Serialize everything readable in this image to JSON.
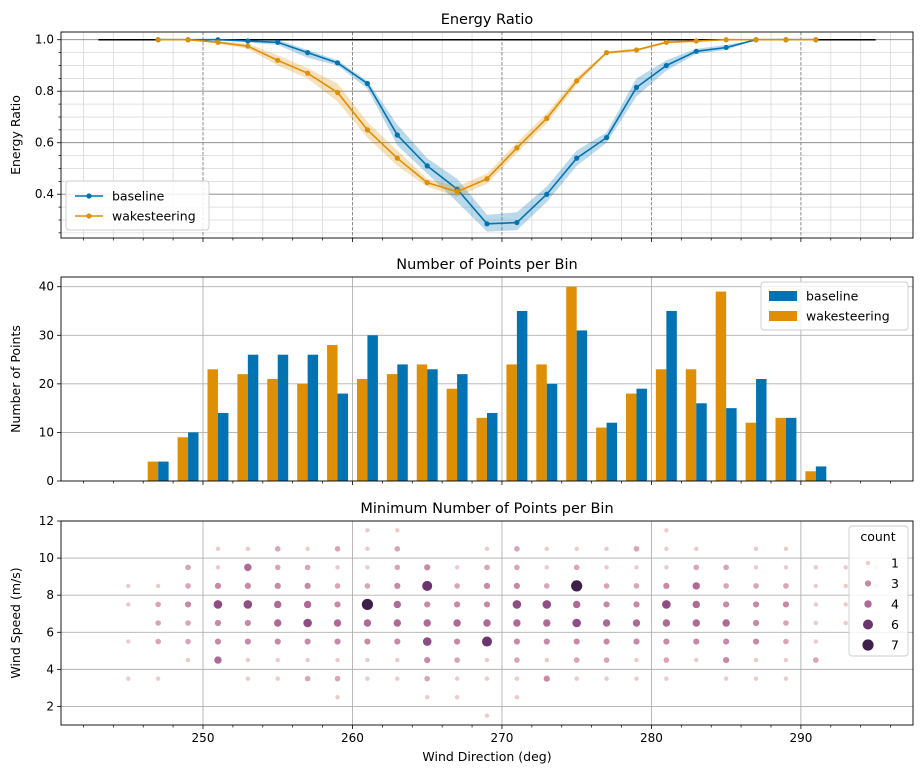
{
  "chart_data": [
    {
      "type": "line",
      "title": "Energy Ratio",
      "xlabel": "",
      "ylabel": "Energy Ratio",
      "xlim": [
        240.5,
        297.5
      ],
      "ylim": [
        0.23,
        1.03
      ],
      "yticks": [
        "0.4",
        "0.6",
        "0.8",
        "1.0"
      ],
      "grid": true,
      "legend_position": "lower-left",
      "reference_line": {
        "x": [
          243,
          295
        ],
        "y": 1.0,
        "color": "#000000"
      },
      "series": [
        {
          "name": "baseline",
          "color": "#0173b2",
          "x": [
            247,
            249,
            251,
            253,
            255,
            257,
            259,
            261,
            263,
            265,
            267,
            269,
            271,
            273,
            275,
            277,
            279,
            281,
            283,
            285,
            287,
            289,
            291
          ],
          "y": [
            1.0,
            1.0,
            1.0,
            0.995,
            0.99,
            0.95,
            0.91,
            0.83,
            0.63,
            0.51,
            0.42,
            0.285,
            0.29,
            0.4,
            0.54,
            0.62,
            0.815,
            0.9,
            0.955,
            0.97,
            1.0,
            1.0,
            1.0
          ],
          "ci_low": [
            1.0,
            1.0,
            1.0,
            0.99,
            0.98,
            0.93,
            0.9,
            0.81,
            0.59,
            0.48,
            0.37,
            0.255,
            0.26,
            0.37,
            0.51,
            0.6,
            0.78,
            0.88,
            0.945,
            0.96,
            1.0,
            1.0,
            1.0
          ],
          "ci_high": [
            1.0,
            1.0,
            1.0,
            1.0,
            1.0,
            0.96,
            0.92,
            0.84,
            0.67,
            0.54,
            0.46,
            0.32,
            0.33,
            0.43,
            0.57,
            0.64,
            0.85,
            0.92,
            0.965,
            0.98,
            1.0,
            1.0,
            1.0
          ]
        },
        {
          "name": "wakesteering",
          "color": "#de8f05",
          "x": [
            247,
            249,
            251,
            253,
            255,
            257,
            259,
            261,
            263,
            265,
            267,
            269,
            271,
            273,
            275,
            277,
            279,
            281,
            283,
            285,
            287,
            289,
            291
          ],
          "y": [
            1.0,
            1.0,
            0.99,
            0.975,
            0.92,
            0.87,
            0.795,
            0.65,
            0.54,
            0.445,
            0.41,
            0.46,
            0.58,
            0.695,
            0.84,
            0.95,
            0.96,
            0.99,
            0.995,
            1.0,
            1.0,
            1.0,
            1.0
          ],
          "ci_low": [
            1.0,
            1.0,
            0.985,
            0.965,
            0.9,
            0.85,
            0.76,
            0.62,
            0.51,
            0.43,
            0.39,
            0.44,
            0.56,
            0.675,
            0.825,
            0.945,
            0.955,
            0.985,
            0.99,
            1.0,
            1.0,
            1.0,
            1.0
          ],
          "ci_high": [
            1.0,
            1.0,
            0.995,
            0.985,
            0.94,
            0.89,
            0.83,
            0.68,
            0.57,
            0.46,
            0.43,
            0.48,
            0.6,
            0.715,
            0.855,
            0.955,
            0.965,
            0.995,
            1.0,
            1.0,
            1.0,
            1.0,
            1.0
          ]
        }
      ]
    },
    {
      "type": "bar",
      "title": "Number of Points per Bin",
      "xlabel": "",
      "ylabel": "Number of Points",
      "xlim": [
        240.5,
        297.5
      ],
      "ylim": [
        0,
        42
      ],
      "yticks": [
        "0",
        "10",
        "20",
        "30",
        "40"
      ],
      "grid": true,
      "legend_position": "top-right",
      "x": [
        247,
        249,
        251,
        253,
        255,
        257,
        259,
        261,
        263,
        265,
        267,
        269,
        271,
        273,
        275,
        277,
        279,
        281,
        283,
        285,
        287,
        289,
        291
      ],
      "series": [
        {
          "name": "baseline",
          "color": "#0173b2",
          "values": [
            4,
            10,
            14,
            26,
            26,
            26,
            18,
            30,
            24,
            23,
            22,
            14,
            35,
            20,
            31,
            12,
            19,
            35,
            16,
            15,
            21,
            13,
            3
          ]
        },
        {
          "name": "wakesteering",
          "color": "#de8f05",
          "values": [
            4,
            9,
            23,
            22,
            21,
            20,
            28,
            21,
            22,
            24,
            19,
            13,
            24,
            24,
            40,
            11,
            18,
            23,
            23,
            39,
            12,
            13,
            2
          ]
        }
      ]
    },
    {
      "type": "scatter",
      "title": "Minimum Number of Points per Bin",
      "xlabel": "Wind Direction (deg)",
      "ylabel": "Wind Speed (m/s)",
      "xlim": [
        240.5,
        297.5
      ],
      "ylim": [
        1,
        12
      ],
      "xticks": [
        "250",
        "260",
        "270",
        "280",
        "290"
      ],
      "yticks": [
        "2",
        "4",
        "6",
        "8",
        "10",
        "12"
      ],
      "grid": true,
      "legend_title": "count",
      "legend_position": "right",
      "legend_levels": [
        "1",
        "3",
        "4",
        "6",
        "7"
      ],
      "points": [
        [
          245,
          3.5,
          1
        ],
        [
          245,
          5.5,
          1
        ],
        [
          245,
          7.5,
          1
        ],
        [
          245,
          8.5,
          1
        ],
        [
          247,
          3.5,
          1
        ],
        [
          247,
          5.5,
          2
        ],
        [
          247,
          6.5,
          2
        ],
        [
          247,
          7.5,
          2
        ],
        [
          247,
          8.5,
          1
        ],
        [
          249,
          4.5,
          1
        ],
        [
          249,
          5.5,
          2
        ],
        [
          249,
          6.5,
          2
        ],
        [
          249,
          7.5,
          3
        ],
        [
          249,
          8.5,
          2
        ],
        [
          249,
          9.5,
          2
        ],
        [
          251,
          4.5,
          4
        ],
        [
          251,
          5.5,
          3
        ],
        [
          251,
          6.5,
          3
        ],
        [
          251,
          7.5,
          5
        ],
        [
          251,
          8.5,
          3
        ],
        [
          251,
          9.5,
          1
        ],
        [
          251,
          10.5,
          1
        ],
        [
          253,
          3.5,
          1
        ],
        [
          253,
          4.5,
          1
        ],
        [
          253,
          5.5,
          3
        ],
        [
          253,
          6.5,
          3
        ],
        [
          253,
          7.5,
          5
        ],
        [
          253,
          8.5,
          3
        ],
        [
          253,
          9.5,
          4
        ],
        [
          253,
          10.5,
          1
        ],
        [
          255,
          3.5,
          1
        ],
        [
          255,
          4.5,
          1
        ],
        [
          255,
          5.5,
          3
        ],
        [
          255,
          6.5,
          4
        ],
        [
          255,
          7.5,
          4
        ],
        [
          255,
          8.5,
          3
        ],
        [
          255,
          9.5,
          2
        ],
        [
          255,
          10.5,
          2
        ],
        [
          257,
          3.5,
          2
        ],
        [
          257,
          4.5,
          1
        ],
        [
          257,
          5.5,
          3
        ],
        [
          257,
          6.5,
          5
        ],
        [
          257,
          7.5,
          4
        ],
        [
          257,
          8.5,
          3
        ],
        [
          257,
          9.5,
          2
        ],
        [
          257,
          10.5,
          1
        ],
        [
          259,
          2.5,
          1
        ],
        [
          259,
          3.5,
          2
        ],
        [
          259,
          4.5,
          1
        ],
        [
          259,
          5.5,
          3
        ],
        [
          259,
          6.5,
          4
        ],
        [
          259,
          7.5,
          3
        ],
        [
          259,
          8.5,
          2
        ],
        [
          259,
          9.5,
          1
        ],
        [
          259,
          10.5,
          2
        ],
        [
          261,
          3.5,
          1
        ],
        [
          261,
          4.5,
          1
        ],
        [
          261,
          5.5,
          3
        ],
        [
          261,
          6.5,
          4
        ],
        [
          261,
          7.5,
          7
        ],
        [
          261,
          8.5,
          2
        ],
        [
          261,
          9.5,
          1
        ],
        [
          261,
          10.5,
          1
        ],
        [
          261,
          11.5,
          1
        ],
        [
          263,
          3.5,
          1
        ],
        [
          263,
          4.5,
          1
        ],
        [
          263,
          5.5,
          3
        ],
        [
          263,
          6.5,
          4
        ],
        [
          263,
          7.5,
          4
        ],
        [
          263,
          8.5,
          3
        ],
        [
          263,
          9.5,
          2
        ],
        [
          263,
          10.5,
          2
        ],
        [
          263,
          11.5,
          1
        ],
        [
          265,
          2.5,
          1
        ],
        [
          265,
          3.5,
          2
        ],
        [
          265,
          4.5,
          3
        ],
        [
          265,
          5.5,
          5
        ],
        [
          265,
          6.5,
          4
        ],
        [
          265,
          7.5,
          3
        ],
        [
          265,
          8.5,
          6
        ],
        [
          265,
          9.5,
          3
        ],
        [
          267,
          2.5,
          1
        ],
        [
          267,
          3.5,
          1
        ],
        [
          267,
          4.5,
          2
        ],
        [
          267,
          5.5,
          3
        ],
        [
          267,
          6.5,
          4
        ],
        [
          267,
          7.5,
          3
        ],
        [
          267,
          8.5,
          2
        ],
        [
          267,
          9.5,
          1
        ],
        [
          269,
          1.5,
          1
        ],
        [
          269,
          3.5,
          1
        ],
        [
          269,
          4.5,
          1
        ],
        [
          269,
          5.5,
          6
        ],
        [
          269,
          6.5,
          4
        ],
        [
          269,
          7.5,
          3
        ],
        [
          269,
          8.5,
          3
        ],
        [
          269,
          9.5,
          2
        ],
        [
          269,
          10.5,
          1
        ],
        [
          271,
          2.5,
          1
        ],
        [
          271,
          3.5,
          1
        ],
        [
          271,
          4.5,
          2
        ],
        [
          271,
          5.5,
          3
        ],
        [
          271,
          6.5,
          4
        ],
        [
          271,
          7.5,
          5
        ],
        [
          271,
          8.5,
          3
        ],
        [
          271,
          9.5,
          2
        ],
        [
          271,
          10.5,
          2
        ],
        [
          273,
          3.5,
          3
        ],
        [
          273,
          4.5,
          1
        ],
        [
          273,
          5.5,
          3
        ],
        [
          273,
          6.5,
          4
        ],
        [
          273,
          7.5,
          5
        ],
        [
          273,
          8.5,
          2
        ],
        [
          273,
          9.5,
          1
        ],
        [
          273,
          10.5,
          1
        ],
        [
          275,
          3.5,
          1
        ],
        [
          275,
          4.5,
          2
        ],
        [
          275,
          5.5,
          3
        ],
        [
          275,
          6.5,
          5
        ],
        [
          275,
          7.5,
          4
        ],
        [
          275,
          8.5,
          7
        ],
        [
          275,
          9.5,
          2
        ],
        [
          275,
          10.5,
          1
        ],
        [
          277,
          3.5,
          1
        ],
        [
          277,
          4.5,
          2
        ],
        [
          277,
          5.5,
          3
        ],
        [
          277,
          6.5,
          4
        ],
        [
          277,
          7.5,
          3
        ],
        [
          277,
          8.5,
          2
        ],
        [
          277,
          9.5,
          1
        ],
        [
          277,
          10.5,
          1
        ],
        [
          279,
          3.5,
          1
        ],
        [
          279,
          4.5,
          1
        ],
        [
          279,
          5.5,
          3
        ],
        [
          279,
          6.5,
          4
        ],
        [
          279,
          7.5,
          3
        ],
        [
          279,
          8.5,
          2
        ],
        [
          279,
          9.5,
          1
        ],
        [
          279,
          10.5,
          2
        ],
        [
          281,
          3.5,
          1
        ],
        [
          281,
          4.5,
          2
        ],
        [
          281,
          5.5,
          3
        ],
        [
          281,
          6.5,
          4
        ],
        [
          281,
          7.5,
          5
        ],
        [
          281,
          8.5,
          3
        ],
        [
          281,
          9.5,
          1
        ],
        [
          281,
          10.5,
          1
        ],
        [
          281,
          11.5,
          1
        ],
        [
          283,
          4.5,
          1
        ],
        [
          283,
          5.5,
          3
        ],
        [
          283,
          6.5,
          4
        ],
        [
          283,
          7.5,
          4
        ],
        [
          283,
          8.5,
          4
        ],
        [
          283,
          9.5,
          2
        ],
        [
          283,
          10.5,
          1
        ],
        [
          285,
          3.5,
          1
        ],
        [
          285,
          4.5,
          3
        ],
        [
          285,
          5.5,
          3
        ],
        [
          285,
          6.5,
          4
        ],
        [
          285,
          7.5,
          3
        ],
        [
          285,
          8.5,
          2
        ],
        [
          285,
          9.5,
          2
        ],
        [
          287,
          3.5,
          1
        ],
        [
          287,
          4.5,
          1
        ],
        [
          287,
          5.5,
          3
        ],
        [
          287,
          6.5,
          3
        ],
        [
          287,
          7.5,
          3
        ],
        [
          287,
          8.5,
          2
        ],
        [
          287,
          9.5,
          1
        ],
        [
          287,
          10.5,
          1
        ],
        [
          289,
          3.5,
          1
        ],
        [
          289,
          4.5,
          1
        ],
        [
          289,
          5.5,
          2
        ],
        [
          289,
          6.5,
          2
        ],
        [
          289,
          7.5,
          3
        ],
        [
          289,
          8.5,
          2
        ],
        [
          289,
          9.5,
          1
        ],
        [
          289,
          10.5,
          1
        ],
        [
          291,
          4.5,
          2
        ],
        [
          291,
          5.5,
          1
        ],
        [
          291,
          6.5,
          1
        ],
        [
          291,
          7.5,
          1
        ],
        [
          291,
          8.5,
          1
        ],
        [
          291,
          9.5,
          1
        ],
        [
          293,
          6.5,
          1
        ],
        [
          293,
          7.5,
          1
        ],
        [
          293,
          8.5,
          1
        ],
        [
          293,
          9.5,
          1
        ],
        [
          295,
          8.5,
          1
        ],
        [
          295,
          9.5,
          1
        ]
      ]
    }
  ]
}
